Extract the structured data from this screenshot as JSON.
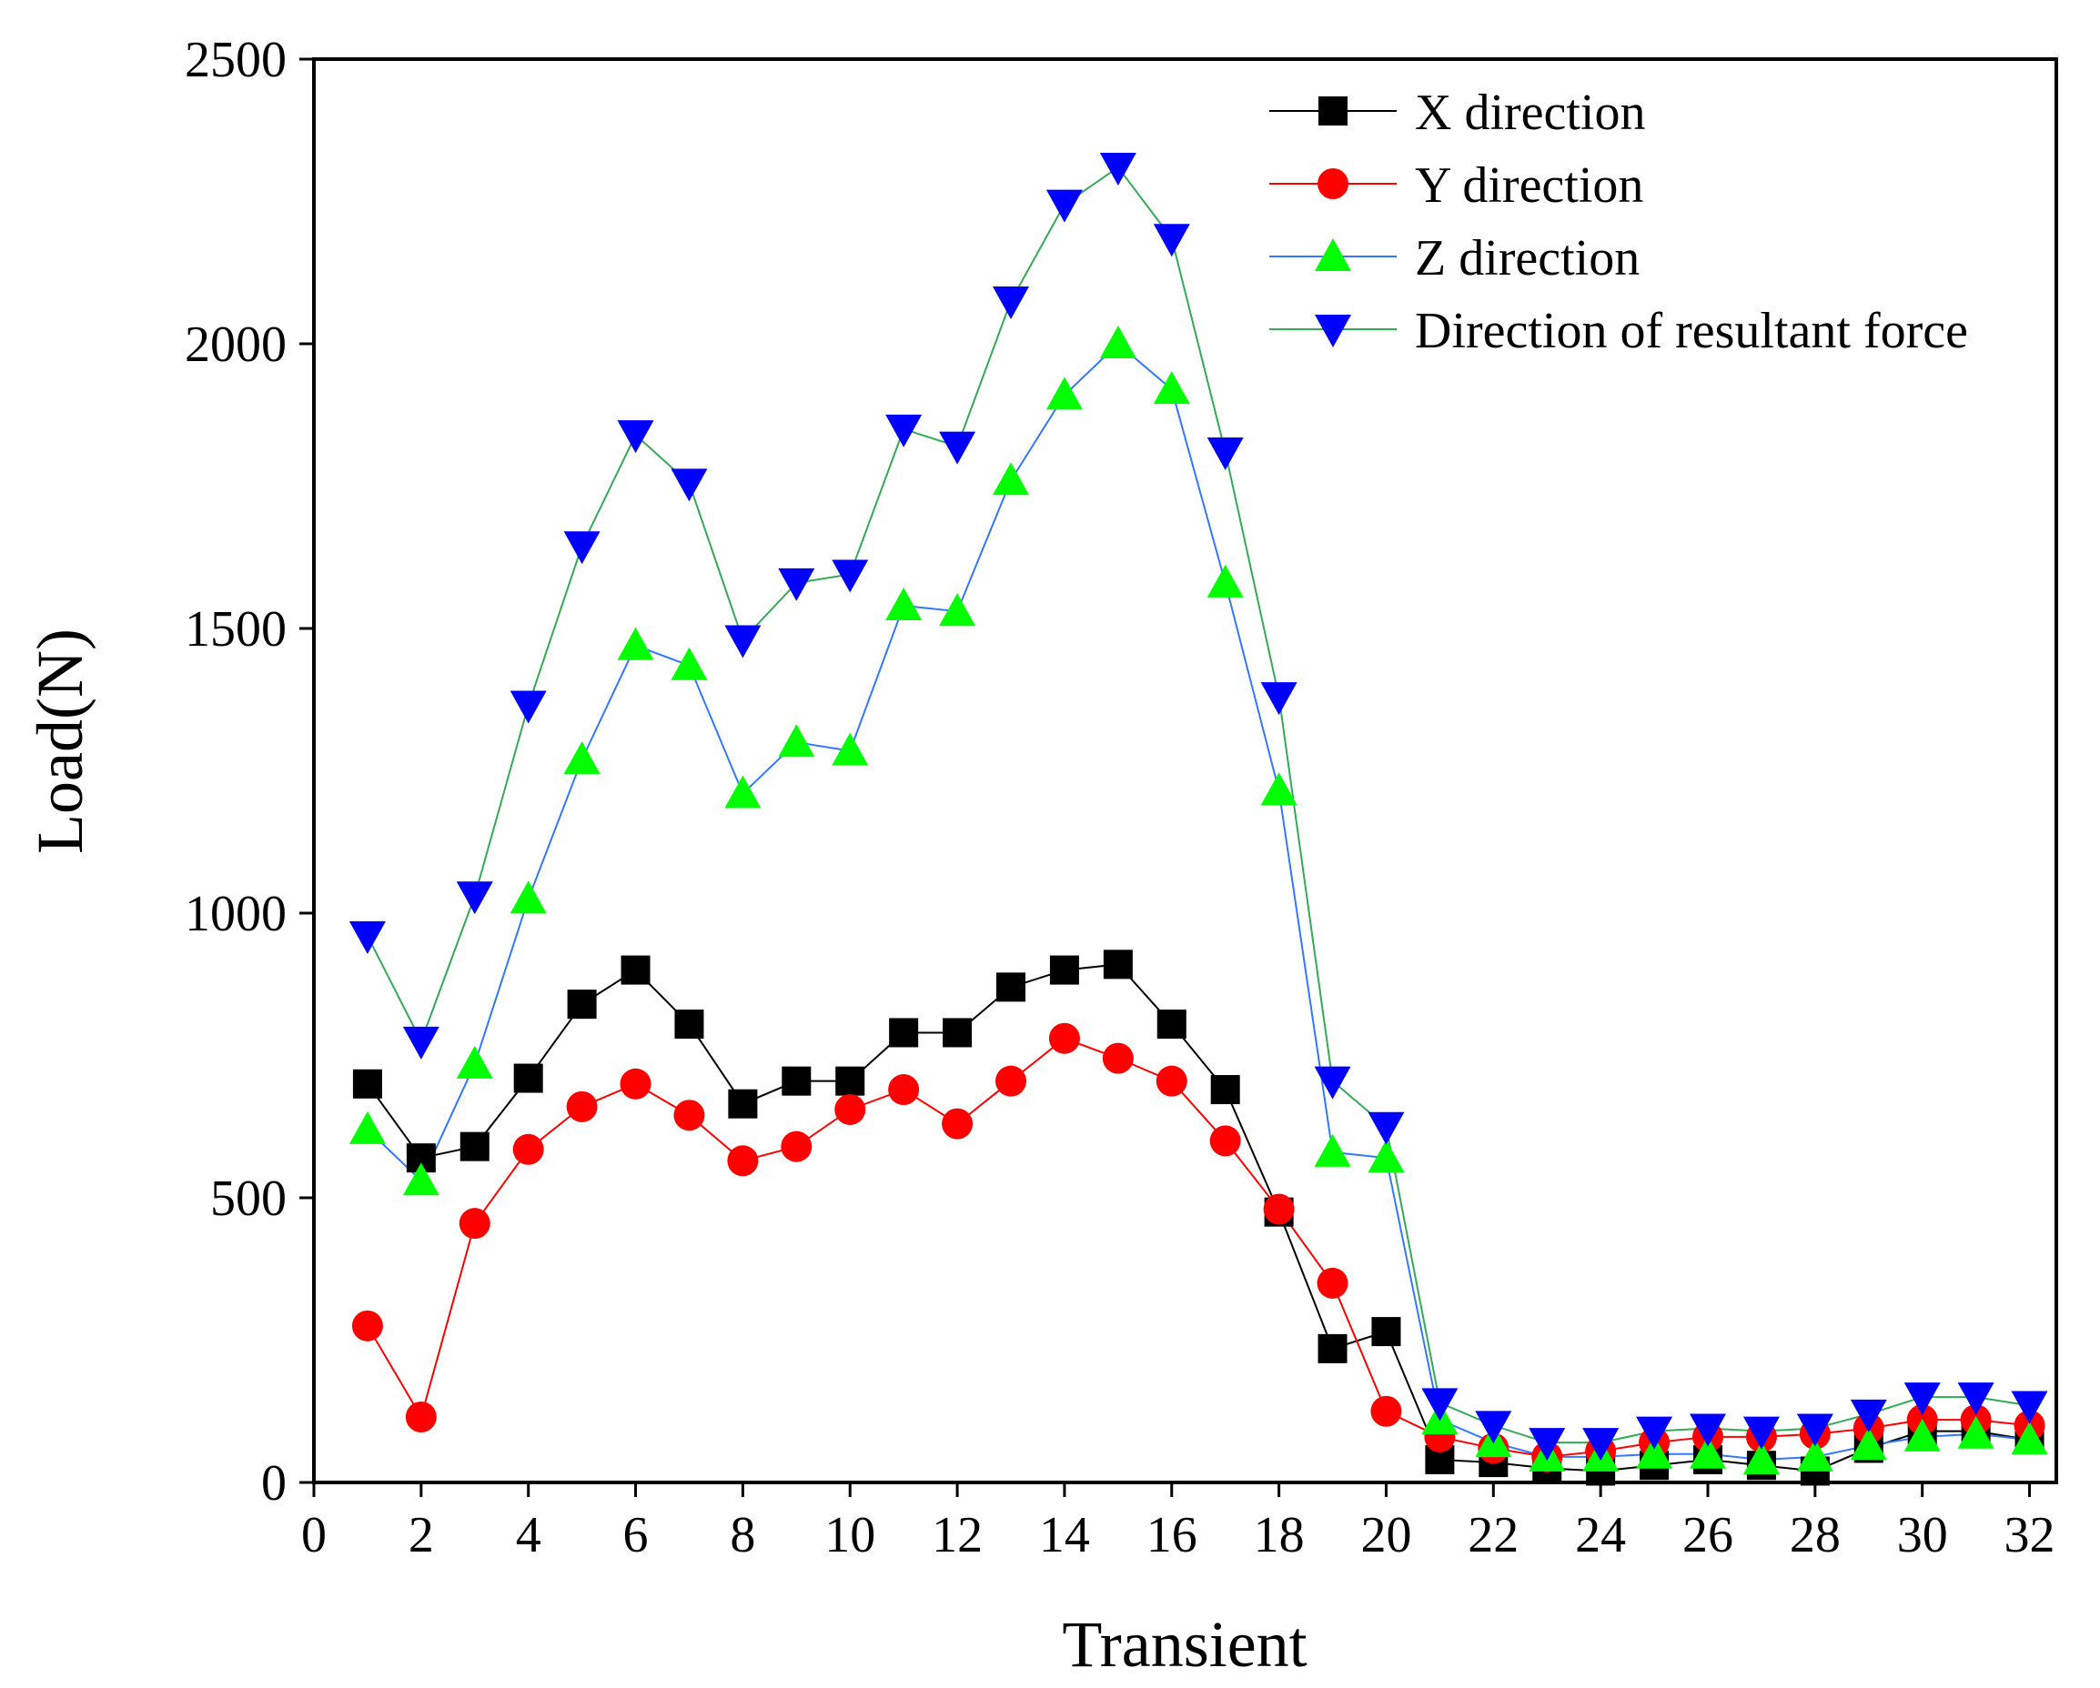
{
  "chart_data": {
    "type": "line",
    "title": "",
    "xlabel": "Transient",
    "ylabel": "Load(N)",
    "xlim": [
      0,
      32.5
    ],
    "ylim": [
      0,
      2500
    ],
    "xticks": [
      0,
      2,
      4,
      6,
      8,
      10,
      12,
      14,
      16,
      18,
      20,
      22,
      24,
      26,
      28,
      30,
      32
    ],
    "yticks": [
      0,
      500,
      1000,
      1500,
      2000,
      2500
    ],
    "grid": false,
    "legend_position": "top-right",
    "x": [
      1,
      2,
      3,
      4,
      5,
      6,
      7,
      8,
      9,
      10,
      11,
      12,
      13,
      14,
      15,
      16,
      17,
      18,
      19,
      20,
      21,
      22,
      23,
      24,
      25,
      26,
      27,
      28,
      29,
      30,
      31,
      32
    ],
    "series": [
      {
        "name": "X direction",
        "color": "#000000",
        "line_color": "#000000",
        "marker": "square",
        "values": [
          700,
          570,
          590,
          710,
          840,
          900,
          805,
          665,
          705,
          705,
          790,
          790,
          870,
          900,
          910,
          805,
          690,
          475,
          235,
          265,
          40,
          35,
          25,
          20,
          30,
          40,
          30,
          20,
          60,
          90,
          90,
          75
        ]
      },
      {
        "name": "Y direction",
        "color": "#ff0000",
        "line_color": "#ff0000",
        "marker": "circle",
        "values": [
          275,
          115,
          455,
          585,
          660,
          700,
          645,
          565,
          590,
          655,
          690,
          630,
          705,
          780,
          745,
          705,
          600,
          480,
          350,
          125,
          80,
          60,
          45,
          55,
          70,
          80,
          80,
          85,
          95,
          110,
          110,
          100
        ]
      },
      {
        "name": "Z direction",
        "color": "#00ff00",
        "line_color": "#3377ff",
        "marker": "triangle-up",
        "values": [
          620,
          530,
          735,
          1025,
          1270,
          1470,
          1435,
          1210,
          1300,
          1285,
          1540,
          1530,
          1760,
          1910,
          2000,
          1920,
          1580,
          1215,
          580,
          570,
          110,
          70,
          45,
          45,
          50,
          50,
          40,
          45,
          65,
          80,
          85,
          75
        ]
      },
      {
        "name": "Direction of resultant force",
        "color": "#0000ff",
        "line_color": "#33aa55",
        "marker": "triangle-down",
        "values": [
          960,
          775,
          1030,
          1365,
          1645,
          1840,
          1755,
          1480,
          1580,
          1595,
          1850,
          1820,
          2075,
          2245,
          2310,
          2185,
          1810,
          1380,
          705,
          625,
          140,
          100,
          70,
          70,
          90,
          95,
          90,
          95,
          120,
          150,
          150,
          135
        ]
      }
    ]
  }
}
